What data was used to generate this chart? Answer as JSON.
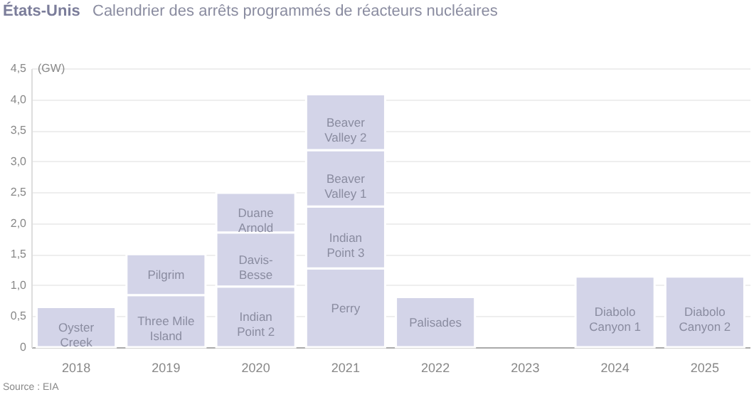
{
  "chart_data": {
    "type": "bar",
    "stacked": true,
    "title": "États-Unis",
    "subtitle": "Calendrier des arrêts programmés de réacteurs nucléaires",
    "ylabel": "(GW)",
    "categories": [
      "2018",
      "2019",
      "2020",
      "2021",
      "2022",
      "2023",
      "2024",
      "2025"
    ],
    "series": [
      {
        "color": "#d3d4e8",
        "values": [
          0.65,
          0.84,
          0.98,
          1.27,
          0.81,
          null,
          1.14,
          1.14
        ],
        "value_labels": [
          "Oyster\nCreek",
          "Three Mile\nIsland",
          "Indian\nPoint 2",
          "Perry",
          "Palisades",
          null,
          "Diabolo\nCanyon 1",
          "Diabolo\nCanyon 2"
        ]
      },
      {
        "color": "#d3d4e8",
        "values": [
          null,
          0.66,
          0.87,
          1.0,
          null,
          null,
          null,
          null
        ],
        "value_labels": [
          null,
          "Pilgrim",
          "Davis-\nBesse",
          "Indian\nPoint 3",
          null,
          null,
          null,
          null
        ]
      },
      {
        "color": "#d3d4e8",
        "values": [
          null,
          null,
          0.64,
          0.91,
          null,
          null,
          null,
          null
        ],
        "value_labels": [
          null,
          null,
          "Duane\nArnold",
          "Beaver\nValley 1",
          null,
          null,
          null,
          null
        ]
      },
      {
        "color": "#d3d4e8",
        "values": [
          null,
          null,
          null,
          0.9,
          null,
          null,
          null,
          null
        ],
        "value_labels": [
          null,
          null,
          null,
          "Beaver\nValley 2",
          null,
          null,
          null,
          null
        ]
      }
    ],
    "ylim": [
      0,
      4.5
    ],
    "yticks": [
      0,
      {
        "value": 0.5,
        "label": "0,5"
      },
      {
        "value": 1.0,
        "label": "1,0"
      },
      {
        "value": 1.5,
        "label": "1,5"
      },
      {
        "value": 2.0,
        "label": "2,0"
      },
      {
        "value": 2.5,
        "label": "2,5"
      },
      {
        "value": 3.0,
        "label": "3,0"
      },
      {
        "value": 3.5,
        "label": "3,5"
      },
      {
        "value": 4.0,
        "label": "4,0"
      },
      {
        "value": 4.5,
        "label": "4,5"
      }
    ],
    "grid": "y",
    "annotations": [
      "Source : EIA"
    ]
  }
}
